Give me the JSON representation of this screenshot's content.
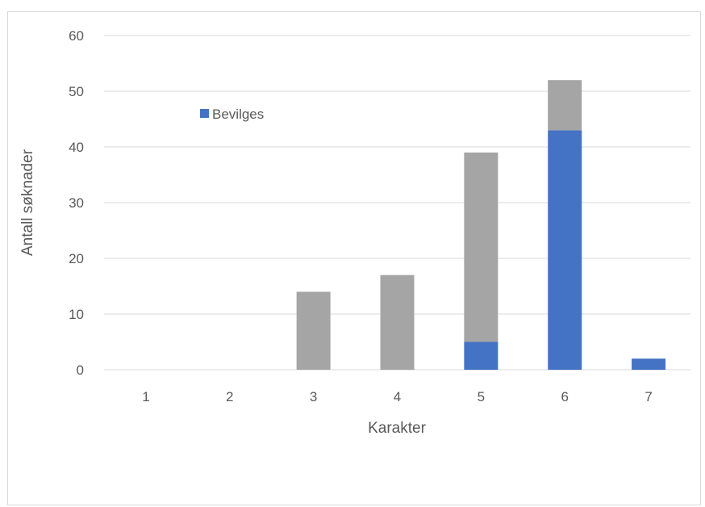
{
  "chart_data": {
    "type": "bar",
    "stacked": true,
    "title": "",
    "xlabel": "Karakter",
    "ylabel": "Antall søknader",
    "categories": [
      "1",
      "2",
      "3",
      "4",
      "5",
      "6",
      "7"
    ],
    "ylim": [
      0,
      60
    ],
    "yticks": [
      0,
      10,
      20,
      30,
      40,
      50,
      60
    ],
    "grid": true,
    "legend_position": "upper-left inside plot",
    "series": [
      {
        "name": "Bevilges",
        "values": [
          0,
          0,
          0,
          0,
          5,
          43,
          2
        ],
        "color": "#4472c4",
        "in_legend": true
      },
      {
        "values": [
          0,
          0,
          14,
          17,
          34,
          9,
          0
        ],
        "color": "#a5a5a5",
        "in_legend": false
      }
    ]
  }
}
